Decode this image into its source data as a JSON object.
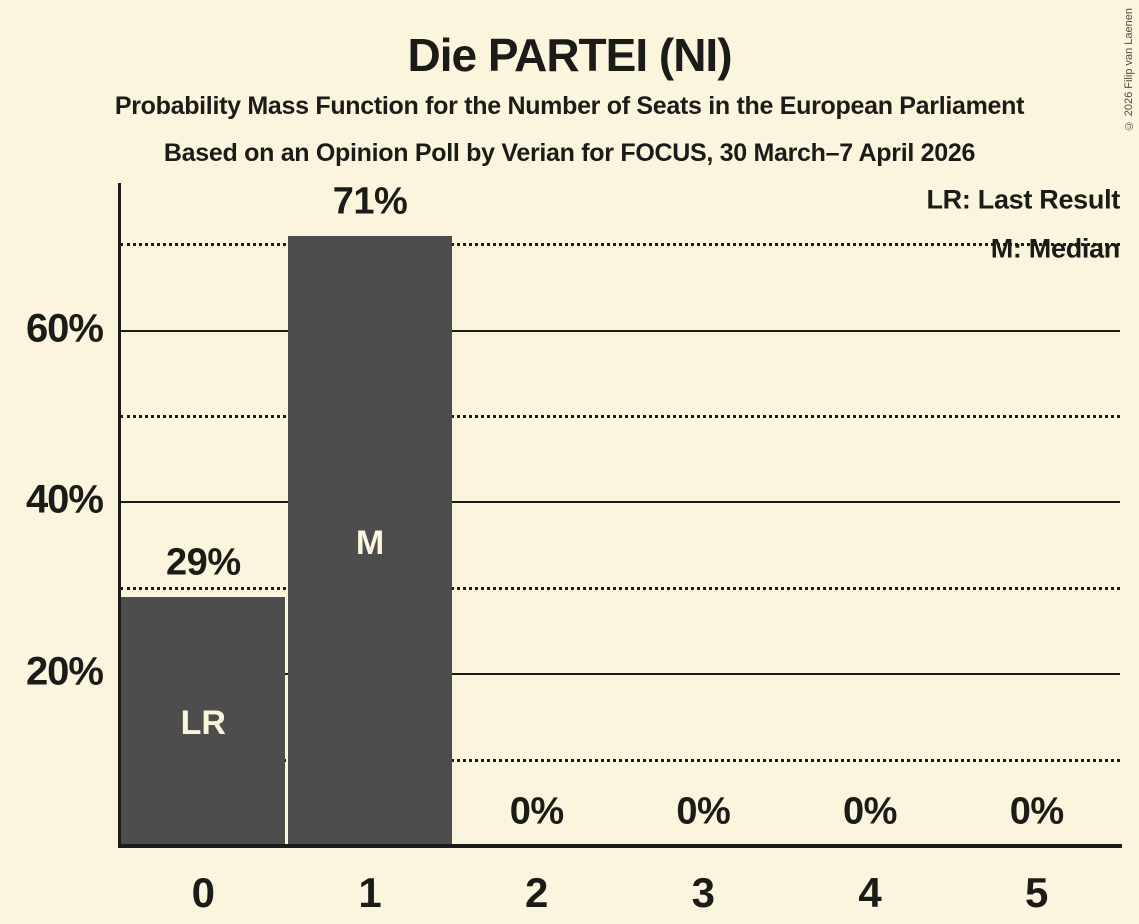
{
  "title": "Die PARTEI (NI)",
  "subtitle": "Probability Mass Function for the Number of Seats in the European Parliament",
  "subsubtitle": "Based on an Opinion Poll by Verian for FOCUS, 30 March–7 April 2026",
  "copyright": "© 2026 Filip van Laenen",
  "legend": {
    "last_result": "LR: Last Result",
    "median": "M: Median"
  },
  "colors": {
    "background": "#FCF5DD",
    "bar": "#4D4D4D",
    "text": "#1B1B18",
    "bar_label": "#FCF5DD"
  },
  "chart_data": {
    "type": "bar",
    "title": "Die PARTEI (NI)",
    "xlabel": "",
    "ylabel": "",
    "categories": [
      "0",
      "1",
      "2",
      "3",
      "4",
      "5"
    ],
    "values": [
      29,
      71,
      0,
      0,
      0,
      0
    ],
    "value_labels": [
      "29%",
      "71%",
      "0%",
      "0%",
      "0%",
      "0%"
    ],
    "bar_annotations": [
      "LR",
      "M",
      "",
      "",
      "",
      ""
    ],
    "ylim": [
      0,
      77
    ],
    "yticks_solid": [
      20,
      40,
      60
    ],
    "ytick_labels": [
      "20%",
      "40%",
      "60%"
    ],
    "yticks_dotted": [
      10,
      30,
      50,
      70
    ],
    "grid": true,
    "legend_position": "top-right"
  }
}
